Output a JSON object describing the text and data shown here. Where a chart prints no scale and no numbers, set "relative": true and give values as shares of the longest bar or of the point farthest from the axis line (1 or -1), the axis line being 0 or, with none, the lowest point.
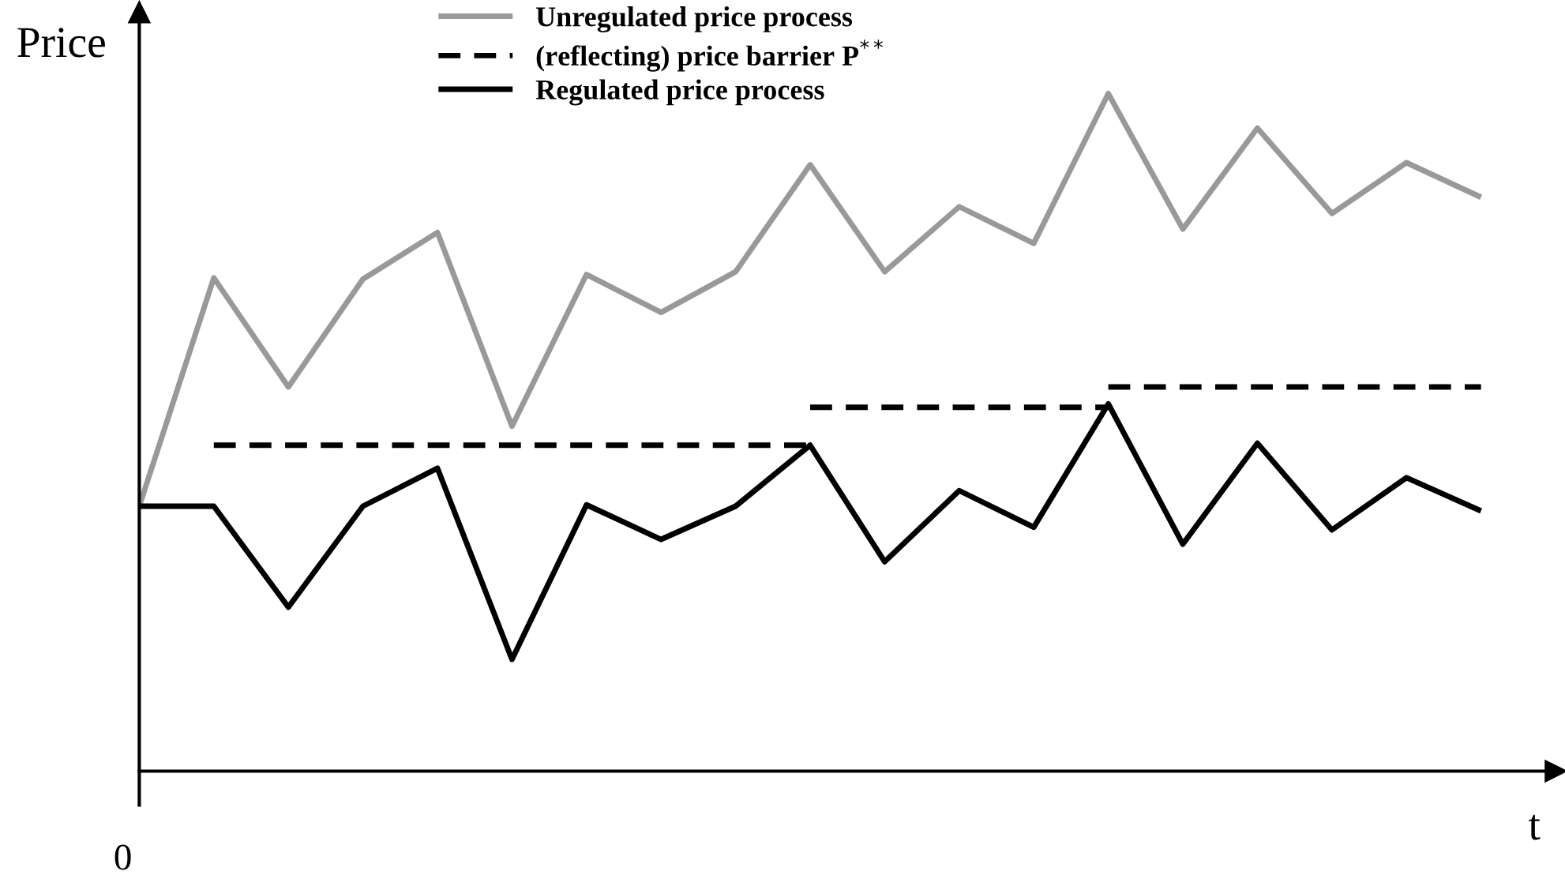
{
  "chart_data": {
    "type": "line",
    "relative": true,
    "xlabel": "t",
    "ylabel": "Price",
    "categories": [
      null,
      null,
      null,
      null,
      null,
      null,
      null,
      null,
      null,
      null,
      null,
      null,
      null,
      null,
      null,
      null,
      null,
      null,
      null
    ],
    "annotations": [
      "0"
    ],
    "legend": "top",
    "marker": "none",
    "series": [
      {
        "name": "Unregulated price process",
        "color": "#999999",
        "line_style": "solid",
        "values": [
          0.391,
          0.728,
          0.567,
          0.726,
          0.795,
          0.509,
          0.733,
          0.677,
          0.737,
          0.895,
          0.737,
          0.833,
          0.779,
          1.0,
          0.8,
          0.949,
          0.823,
          0.898,
          0.847
        ]
      },
      {
        "name": "(reflecting) price barrier P$^{**}$",
        "color": "#000000",
        "line_style": "dashed",
        "type": "step",
        "values": [
          null,
          0.481,
          0.481,
          0.481,
          0.481,
          0.481,
          0.481,
          0.481,
          0.481,
          0.537,
          0.537,
          0.537,
          0.537,
          0.567,
          0.567,
          0.567,
          0.567,
          0.567,
          0.567
        ]
      },
      {
        "name": "Regulated price process",
        "color": "#000000",
        "line_style": "solid",
        "values": [
          0.391,
          0.391,
          0.242,
          0.391,
          0.447,
          0.165,
          0.393,
          0.342,
          0.391,
          0.481,
          0.309,
          0.414,
          0.36,
          0.542,
          0.335,
          0.484,
          0.356,
          0.433,
          0.384
        ]
      }
    ]
  }
}
